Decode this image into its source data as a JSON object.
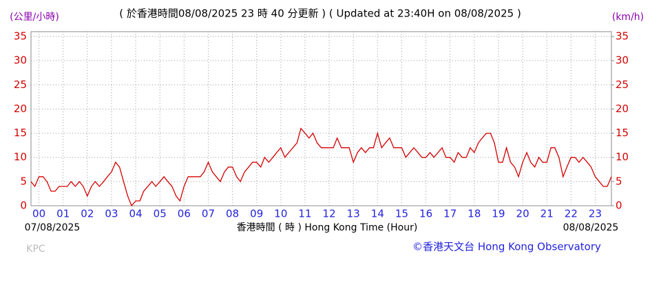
{
  "chart_data": {
    "type": "line",
    "title": "( 於香港時間08/08/2025 23 時 40 分更新 ) ( Updated at 23:40H on 08/08/2025 )",
    "y_unit_left": "(公里/小時)",
    "y_unit_right": "(km/h)",
    "x_label": "香港時間 ( 時 ) Hong Kong Time (Hour)",
    "start_date": "07/08/2025",
    "end_date": "08/08/2025",
    "station": "KPC",
    "credit": "©香港天文台 Hong Kong Observatory",
    "xlim": [
      -0.33,
      23.67
    ],
    "ylim": [
      0,
      36
    ],
    "yticks": [
      0,
      5,
      10,
      15,
      20,
      25,
      30,
      35
    ],
    "y2ticks": [
      0,
      5,
      10,
      15,
      20,
      25,
      30,
      35
    ],
    "xticks": [
      {
        "value": 0,
        "label": "00"
      },
      {
        "value": 1,
        "label": "01"
      },
      {
        "value": 2,
        "label": "02"
      },
      {
        "value": 3,
        "label": "03"
      },
      {
        "value": 4,
        "label": "04"
      },
      {
        "value": 5,
        "label": "05"
      },
      {
        "value": 6,
        "label": "06"
      },
      {
        "value": 7,
        "label": "07"
      },
      {
        "value": 8,
        "label": "08"
      },
      {
        "value": 9,
        "label": "09"
      },
      {
        "value": 10,
        "label": "10"
      },
      {
        "value": 11,
        "label": "11"
      },
      {
        "value": 12,
        "label": "12"
      },
      {
        "value": 13,
        "label": "13"
      },
      {
        "value": 14,
        "label": "14"
      },
      {
        "value": 15,
        "label": "15"
      },
      {
        "value": 16,
        "label": "16"
      },
      {
        "value": 17,
        "label": "17"
      },
      {
        "value": 18,
        "label": "18"
      },
      {
        "value": 19,
        "label": "19"
      },
      {
        "value": 20,
        "label": "20"
      },
      {
        "value": 21,
        "label": "21"
      },
      {
        "value": 22,
        "label": "22"
      },
      {
        "value": 23,
        "label": "23"
      }
    ],
    "grid": true,
    "x": [
      -0.33,
      -0.17,
      0,
      0.17,
      0.33,
      0.5,
      0.67,
      0.83,
      1,
      1.17,
      1.33,
      1.5,
      1.67,
      1.83,
      2,
      2.17,
      2.33,
      2.5,
      2.67,
      2.83,
      3,
      3.17,
      3.33,
      3.5,
      3.67,
      3.83,
      4,
      4.17,
      4.33,
      4.5,
      4.67,
      4.83,
      5,
      5.17,
      5.33,
      5.5,
      5.67,
      5.83,
      6,
      6.17,
      6.33,
      6.5,
      6.67,
      6.83,
      7,
      7.17,
      7.33,
      7.5,
      7.67,
      7.83,
      8,
      8.17,
      8.33,
      8.5,
      8.67,
      8.83,
      9,
      9.17,
      9.33,
      9.5,
      9.67,
      9.83,
      10,
      10.17,
      10.33,
      10.5,
      10.67,
      10.83,
      11,
      11.17,
      11.33,
      11.5,
      11.67,
      11.83,
      12,
      12.17,
      12.33,
      12.5,
      12.67,
      12.83,
      13,
      13.17,
      13.33,
      13.5,
      13.67,
      13.83,
      14,
      14.17,
      14.33,
      14.5,
      14.67,
      14.83,
      15,
      15.17,
      15.33,
      15.5,
      15.67,
      15.83,
      16,
      16.17,
      16.33,
      16.5,
      16.67,
      16.83,
      17,
      17.17,
      17.33,
      17.5,
      17.67,
      17.83,
      18,
      18.17,
      18.33,
      18.5,
      18.67,
      18.83,
      19,
      19.17,
      19.33,
      19.5,
      19.67,
      19.83,
      20,
      20.17,
      20.33,
      20.5,
      20.67,
      20.83,
      21,
      21.17,
      21.33,
      21.5,
      21.67,
      21.83,
      22,
      22.17,
      22.33,
      22.5,
      22.67,
      22.83,
      23,
      23.17,
      23.33,
      23.5,
      23.67
    ],
    "series": [
      {
        "color": "#d40000",
        "values": [
          5,
          4,
          6,
          6,
          5,
          3,
          3,
          4,
          4,
          4,
          5,
          4,
          5,
          4,
          2,
          4,
          5,
          4,
          5,
          6,
          7,
          9,
          8,
          5,
          2,
          0,
          1,
          1,
          3,
          4,
          5,
          4,
          5,
          6,
          5,
          4,
          2,
          1,
          4,
          6,
          6,
          6,
          6,
          7,
          9,
          7,
          6,
          5,
          7,
          8,
          8,
          6,
          5,
          7,
          8,
          9,
          9,
          8,
          10,
          9,
          10,
          11,
          12,
          10,
          11,
          12,
          13,
          16,
          15,
          14,
          15,
          13,
          12,
          12,
          12,
          12,
          14,
          12,
          12,
          12,
          9,
          11,
          12,
          11,
          12,
          12,
          15,
          12,
          13,
          14,
          12,
          12,
          12,
          10,
          11,
          12,
          11,
          10,
          10,
          11,
          10,
          11,
          12,
          10,
          10,
          9,
          11,
          10,
          10,
          12,
          11,
          13,
          14,
          15,
          15,
          13,
          9,
          9,
          12,
          9,
          8,
          6,
          9,
          11,
          9,
          8,
          10,
          9,
          9,
          12,
          12,
          10,
          6,
          8,
          10,
          10,
          9,
          10,
          9,
          8,
          6,
          5,
          4,
          4,
          6
        ]
      }
    ]
  }
}
